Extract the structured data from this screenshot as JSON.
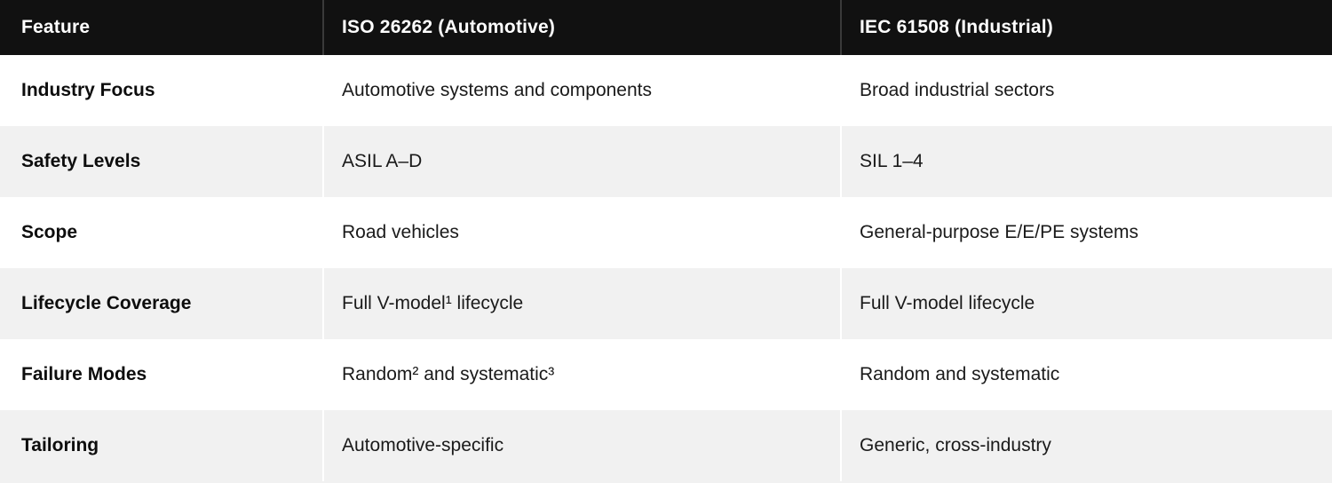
{
  "table": {
    "columns": [
      {
        "label": "Feature"
      },
      {
        "label": "ISO 26262 (Automotive)"
      },
      {
        "label": "IEC 61508 (Industrial)"
      }
    ],
    "rows": [
      {
        "feature": "Industry Focus",
        "iso26262": "Automotive systems and components",
        "iec61508": "Broad industrial sectors"
      },
      {
        "feature": "Safety Levels",
        "iso26262": "ASIL A–D",
        "iec61508": "SIL 1–4"
      },
      {
        "feature": "Scope",
        "iso26262": "Road vehicles",
        "iec61508": "General-purpose E/E/PE systems"
      },
      {
        "feature": "Lifecycle Coverage",
        "iso26262": "Full V-model¹ lifecycle",
        "iec61508": "Full V-model lifecycle"
      },
      {
        "feature": "Failure Modes",
        "iso26262": "Random² and systematic³",
        "iec61508": "Random and systematic"
      },
      {
        "feature": "Tailoring",
        "iso26262": "Automotive-specific",
        "iec61508": "Generic, cross-industry"
      }
    ]
  },
  "colors": {
    "header_bg": "#111111",
    "header_text": "#ffffff",
    "row_bg": "#ffffff",
    "row_alt_bg": "#f1f1f1",
    "body_text": "#1a1a1a",
    "header_divider": "#3a3a3a"
  }
}
